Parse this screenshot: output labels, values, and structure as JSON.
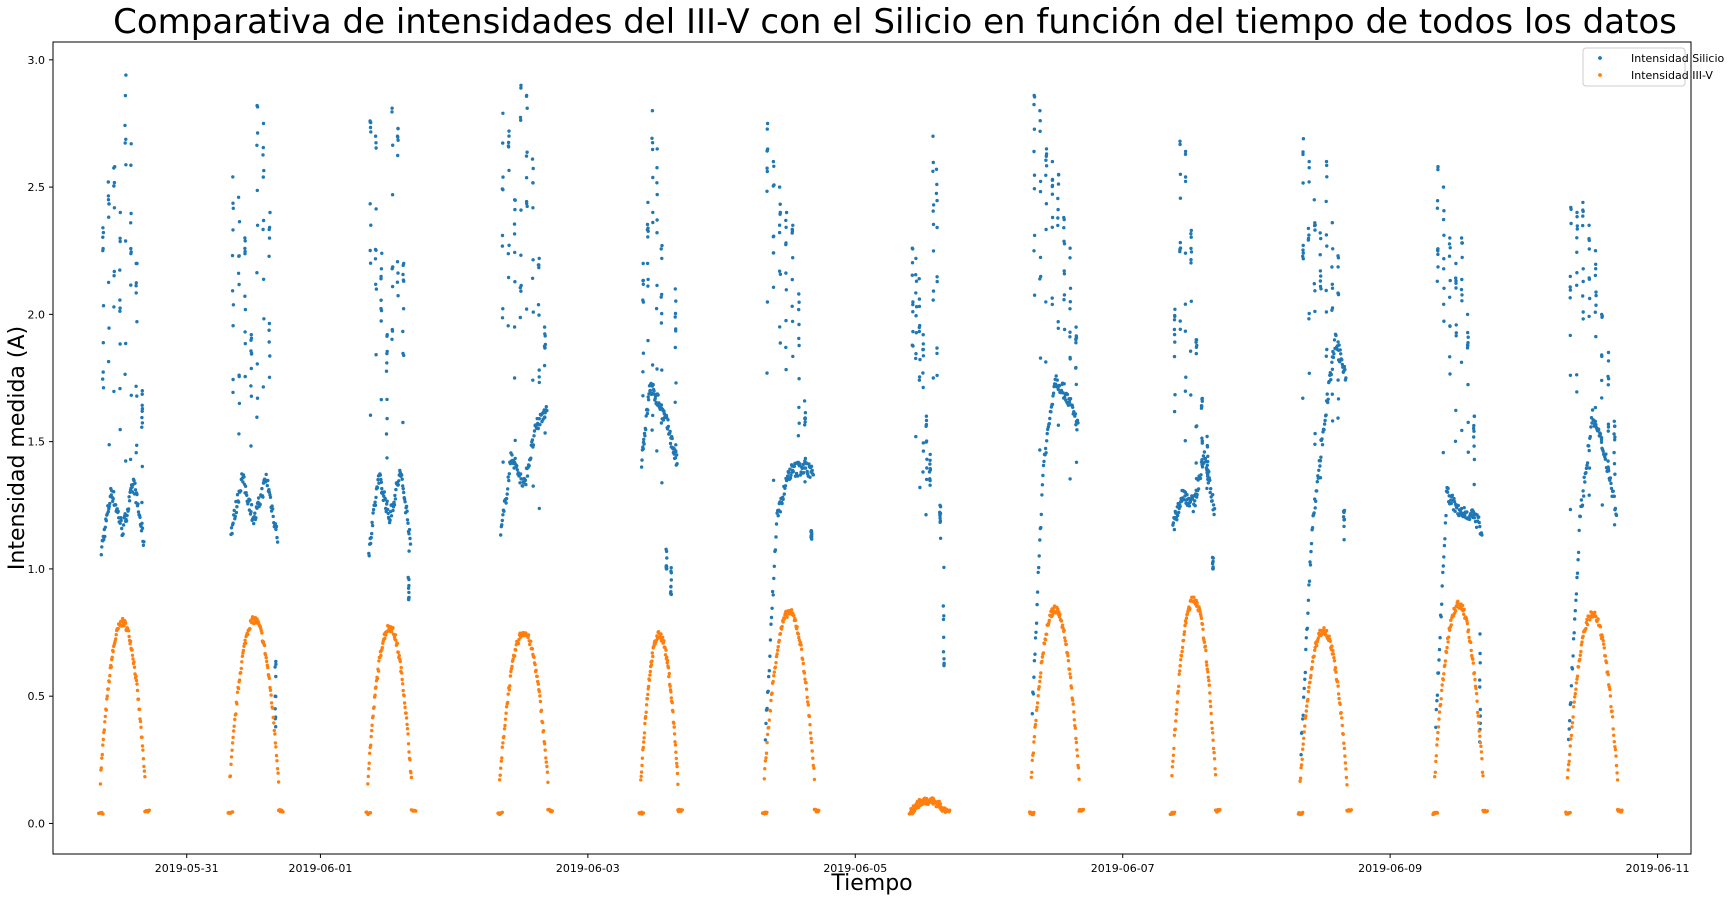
{
  "chart_data": {
    "type": "scatter",
    "title": "Comparativa de intensidades del III-V con el Silicio en función del tiempo de todos los datos",
    "xlabel": "Tiempo",
    "ylabel": "Intensidad medida (A)",
    "xlim": [
      "2019-05-30T00:00",
      "2019-06-11T06:00"
    ],
    "ylim": [
      -0.12,
      3.07
    ],
    "x_ticks": [
      "2019-05-31",
      "2019-06-01",
      "2019-06-03",
      "2019-06-05",
      "2019-06-07",
      "2019-06-09",
      "2019-06-11"
    ],
    "y_ticks": [
      "0.0",
      "0.5",
      "1.0",
      "1.5",
      "2.0",
      "2.5",
      "3.0"
    ],
    "grid": false,
    "legend": "top-right",
    "series": [
      {
        "name": "Intensidad Silicio",
        "color": "#1f77b4"
      },
      {
        "name": "Intensidad III-V",
        "color": "#ff7f0e"
      }
    ],
    "days": [
      {
        "start": "2019-05-30T08:30",
        "end": "2019-05-30T16:30",
        "si_base": [
          1.05,
          1.31,
          1.15,
          1.34,
          1.08
        ],
        "iii_peak": 0.75,
        "spikes": [
          2.34,
          2.52,
          2.58,
          2.4,
          2.94,
          2.67,
          2.2,
          1.7
        ]
      },
      {
        "start": "2019-05-31T07:45",
        "end": "2019-05-31T16:30",
        "si_base": [
          1.12,
          1.36,
          1.19,
          1.36,
          1.1
        ],
        "iii_peak": 0.76,
        "spikes": [
          2.54,
          2.46,
          2.3,
          1.92,
          2.82,
          2.75,
          2.4,
          0.38
        ]
      },
      {
        "start": "2019-06-01T08:30",
        "end": "2019-06-01T16:20",
        "si_base": [
          1.02,
          1.37,
          1.2,
          1.38,
          1.1
        ],
        "iii_peak": 0.73,
        "spikes": [
          2.76,
          2.7,
          2.24,
          1.92,
          2.81,
          2.73,
          2.2,
          0.88
        ]
      },
      {
        "start": "2019-06-02T08:10",
        "end": "2019-06-02T16:50",
        "si_base": [
          1.1,
          1.45,
          1.32,
          1.55,
          1.65
        ],
        "iii_peak": 0.71,
        "spikes": [
          2.79,
          2.72,
          2.45,
          2.9,
          2.86,
          2.61,
          2.22,
          1.95
        ]
      },
      {
        "start": "2019-06-03T09:30",
        "end": "2019-06-03T16:10",
        "si_base": [
          1.4,
          1.72,
          1.65,
          1.55,
          1.4
        ],
        "iii_peak": 0.7,
        "spikes": [
          2.2,
          2.44,
          2.8,
          2.65,
          2.27,
          1.0,
          0.9,
          2.1
        ]
      },
      {
        "start": "2019-06-04T07:40",
        "end": "2019-06-04T16:40",
        "si_base": [
          0.25,
          1.2,
          1.38,
          1.4,
          1.38
        ],
        "iii_peak": 0.79,
        "spikes": [
          2.75,
          2.6,
          2.5,
          2.4,
          2.35,
          2.08,
          1.66,
          1.15
        ]
      },
      {
        "start": "2019-06-05T10:00",
        "end": "2019-06-05T16:10",
        "si_base": [],
        "iii_peak": 0.05,
        "spikes": [
          2.26,
          2.22,
          2.14,
          1.92,
          1.6,
          1.45,
          2.7,
          2.57,
          1.25,
          0.62
        ]
      },
      {
        "start": "2019-06-06T07:35",
        "end": "2019-06-06T16:10",
        "si_base": [
          0.35,
          1.4,
          1.75,
          1.68,
          1.55
        ],
        "iii_peak": 0.8,
        "spikes": [
          2.86,
          2.8,
          2.65,
          2.6,
          2.55,
          2.38,
          2.26,
          1.95
        ]
      },
      {
        "start": "2019-06-07T08:50",
        "end": "2019-06-07T16:40",
        "si_base": [
          1.15,
          1.3,
          1.25,
          1.45,
          1.2
        ],
        "iii_peak": 0.84,
        "spikes": [
          2.02,
          2.68,
          2.64,
          2.33,
          1.9,
          1.67,
          1.52,
          1.0
        ]
      },
      {
        "start": "2019-06-08T07:50",
        "end": "2019-06-08T16:15",
        "si_base": [
          0.2,
          1.15,
          1.55,
          1.9,
          1.75
        ],
        "iii_peak": 0.72,
        "spikes": [
          2.69,
          2.6,
          2.45,
          2.32,
          2.6,
          2.36,
          2.23,
          1.23
        ]
      },
      {
        "start": "2019-06-09T08:00",
        "end": "2019-06-09T16:40",
        "si_base": [
          0.3,
          1.3,
          1.22,
          1.22,
          1.15
        ],
        "iii_peak": 0.82,
        "spikes": [
          2.58,
          2.5,
          2.3,
          2.2,
          2.3,
          2.0,
          1.6,
          0.32
        ]
      },
      {
        "start": "2019-06-10T07:50",
        "end": "2019-06-10T16:50",
        "si_base": [
          0.25,
          1.2,
          1.6,
          1.45,
          1.2
        ],
        "iii_peak": 0.78,
        "spikes": [
          2.42,
          2.4,
          2.44,
          2.35,
          2.25,
          2.0,
          1.85,
          1.58
        ]
      }
    ]
  }
}
